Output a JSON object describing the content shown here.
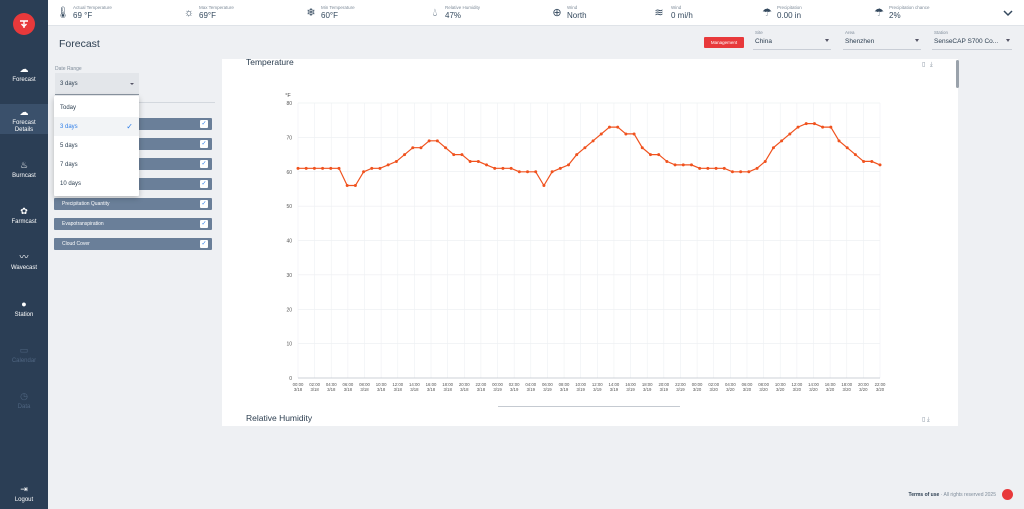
{
  "sidebar": {
    "items": [
      {
        "label": "Forecast",
        "icon": "cloud-sun-icon"
      },
      {
        "label": "Forecast Details",
        "icon": "cloud-detail-icon"
      },
      {
        "label": "Burncast",
        "icon": "flame-icon"
      },
      {
        "label": "Farmcast",
        "icon": "plant-icon"
      },
      {
        "label": "Wavecast",
        "icon": "wave-icon"
      },
      {
        "label": "Station",
        "icon": "location-pin-icon"
      },
      {
        "label": "Calendar",
        "icon": "calendar-icon"
      },
      {
        "label": "Data",
        "icon": "history-icon"
      },
      {
        "label": "Logout",
        "icon": "logout-icon"
      }
    ]
  },
  "topbar": {
    "stats": [
      {
        "label": "Actual Temperature",
        "value": "69 °F",
        "icon": "thermometer-icon"
      },
      {
        "label": "Max Temperature",
        "value": "69°F",
        "icon": "thermometer-sun-icon"
      },
      {
        "label": "Min Temperature",
        "value": "60°F",
        "icon": "thermometer-snow-icon"
      },
      {
        "label": "Relative Humidity",
        "value": "47%",
        "icon": "droplets-icon"
      },
      {
        "label": "Wind",
        "value": "North",
        "icon": "compass-icon"
      },
      {
        "label": "Wind",
        "value": "0 mi/h",
        "icon": "wind-icon"
      },
      {
        "label": "Precipitation",
        "value": "0.00 in",
        "icon": "rain-icon"
      },
      {
        "label": "Precipitation chance",
        "value": "2%",
        "icon": "rain-chance-icon"
      }
    ]
  },
  "header": {
    "title": "Forecast",
    "management_label": "Management",
    "selects": [
      {
        "label": "Site",
        "value": "China"
      },
      {
        "label": "Area",
        "value": "Shenzhen"
      },
      {
        "label": "Station",
        "value": "SenseCAP S700 Co..."
      }
    ]
  },
  "left_panel": {
    "date_range_label": "Date Range",
    "date_range_value": "3 days",
    "options": [
      "Today",
      "3 days",
      "5 days",
      "7 days",
      "10 days"
    ],
    "selected_option": "3 days",
    "variables": [
      "Precipitation Quantity",
      "Evapotranspiration",
      "Cloud Cover"
    ]
  },
  "chart_card": {
    "title": "Temperature",
    "next_title": "Relative Humidity"
  },
  "chart_data": {
    "type": "line",
    "title": "Temperature",
    "ylabel": "°F",
    "ylim": [
      0,
      80
    ],
    "yticks": [
      0,
      10,
      20,
      30,
      40,
      50,
      60,
      70,
      80
    ],
    "grid": true,
    "color": "#f0521e",
    "xtick_labels": [
      [
        "00:00",
        "3/18"
      ],
      [
        "02:00",
        "3/18"
      ],
      [
        "04:00",
        "3/18"
      ],
      [
        "06:00",
        "3/18"
      ],
      [
        "08:00",
        "3/18"
      ],
      [
        "10:00",
        "3/18"
      ],
      [
        "12:00",
        "3/18"
      ],
      [
        "14:00",
        "3/18"
      ],
      [
        "16:00",
        "3/18"
      ],
      [
        "18:00",
        "3/18"
      ],
      [
        "20:00",
        "3/18"
      ],
      [
        "22:00",
        "3/18"
      ],
      [
        "00:00",
        "3/19"
      ],
      [
        "02:00",
        "3/19"
      ],
      [
        "04:00",
        "3/19"
      ],
      [
        "06:00",
        "3/19"
      ],
      [
        "08:00",
        "3/19"
      ],
      [
        "10:00",
        "3/19"
      ],
      [
        "12:00",
        "3/19"
      ],
      [
        "14:00",
        "3/19"
      ],
      [
        "16:00",
        "3/19"
      ],
      [
        "18:00",
        "3/19"
      ],
      [
        "20:00",
        "3/19"
      ],
      [
        "22:00",
        "3/19"
      ],
      [
        "00:00",
        "3/20"
      ],
      [
        "02:00",
        "3/20"
      ],
      [
        "04:00",
        "3/20"
      ],
      [
        "06:00",
        "3/20"
      ],
      [
        "08:00",
        "3/20"
      ],
      [
        "10:00",
        "3/20"
      ],
      [
        "12:00",
        "3/20"
      ],
      [
        "14:00",
        "3/20"
      ],
      [
        "16:00",
        "3/20"
      ],
      [
        "18:00",
        "3/20"
      ],
      [
        "20:00",
        "3/20"
      ],
      [
        "22:00",
        "3/20"
      ]
    ],
    "values": [
      61,
      61,
      61,
      61,
      61,
      61,
      56,
      56,
      60,
      61,
      61,
      62,
      63,
      65,
      67,
      67,
      69,
      69,
      67,
      65,
      65,
      63,
      63,
      62,
      61,
      61,
      61,
      60,
      60,
      60,
      56,
      60,
      61,
      62,
      65,
      67,
      69,
      71,
      73,
      73,
      71,
      71,
      67,
      65,
      65,
      63,
      62,
      62,
      62,
      61,
      61,
      61,
      61,
      60,
      60,
      60,
      61,
      63,
      67,
      69,
      71,
      73,
      74,
      74,
      73,
      73,
      69,
      67,
      65,
      63,
      63,
      62
    ]
  },
  "footer": {
    "terms": "Terms of use",
    "rights": "All rights reserved 2025"
  }
}
